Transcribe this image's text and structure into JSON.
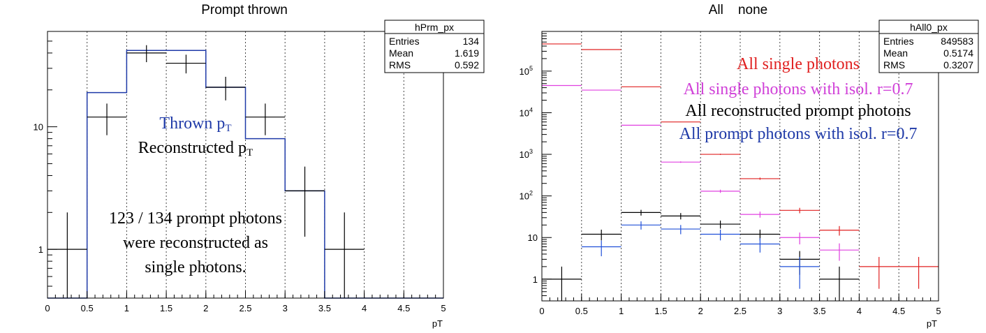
{
  "chart_data": [
    {
      "type": "line",
      "style": "histogram with error bars",
      "title": "Prompt thrown",
      "xlabel": "pT",
      "ylabel": "",
      "xlim": [
        0,
        5
      ],
      "ylim": [
        0.4,
        60
      ],
      "log_y": true,
      "grid": "vertical dashed",
      "x_ticks": [
        "0",
        "0.5",
        "1",
        "1.5",
        "2",
        "2.5",
        "3",
        "3.5",
        "4",
        "4.5",
        "5"
      ],
      "y_ticks": [
        {
          "value": 1,
          "label": "1"
        },
        {
          "value": 10,
          "label": "10"
        }
      ],
      "stats_box": {
        "title": "hPrm_px",
        "rows": [
          {
            "label": "Entries",
            "value": "134"
          },
          {
            "label": "Mean",
            "value": "1.619"
          },
          {
            "label": "RMS",
            "value": "0.592"
          }
        ]
      },
      "series": [
        {
          "name": "Thrown pT",
          "color": "#1f3aa8",
          "draw": "step",
          "bin_edges": [
            0,
            0.5,
            1,
            1.5,
            2,
            2.5,
            3,
            3.5,
            4,
            4.5,
            5
          ],
          "values": [
            0,
            19,
            42,
            42,
            21,
            8,
            3,
            0,
            0,
            0
          ]
        },
        {
          "name": "Reconstructed pT",
          "color": "#000000",
          "draw": "errorbars",
          "bin_edges": [
            0,
            0.5,
            1,
            1.5,
            2,
            2.5,
            3,
            3.5,
            4,
            4.5,
            5
          ],
          "values": [
            1,
            12,
            40,
            33,
            21,
            12,
            3,
            1,
            0,
            0
          ]
        }
      ],
      "annotations": [
        {
          "id": "thrown",
          "color": "#1f3aa8",
          "main": "Thrown p",
          "sub": "T"
        },
        {
          "id": "reco",
          "color": "#000000",
          "main": "Reconstructed p",
          "sub": "T"
        },
        {
          "id": "summary1",
          "color": "#000000",
          "text": "123 / 134 prompt photons"
        },
        {
          "id": "summary2",
          "color": "#000000",
          "text": "were reconstructed as"
        },
        {
          "id": "summary3",
          "color": "#000000",
          "text": "single photons."
        }
      ]
    },
    {
      "type": "line",
      "style": "histogram with error bars",
      "title": "All    none",
      "xlabel": "pT",
      "ylabel": "",
      "xlim": [
        0,
        5
      ],
      "ylim": [
        0.3,
        900000
      ],
      "log_y": true,
      "grid": "vertical dashed",
      "x_ticks": [
        "0",
        "0.5",
        "1",
        "1.5",
        "2",
        "2.5",
        "3",
        "3.5",
        "4",
        "4.5",
        "5"
      ],
      "y_ticks": [
        {
          "value": 1,
          "label": "1",
          "exp": ""
        },
        {
          "value": 10,
          "label": "10",
          "exp": ""
        },
        {
          "value": 100,
          "label": "10",
          "exp": "2"
        },
        {
          "value": 1000,
          "label": "10",
          "exp": "3"
        },
        {
          "value": 10000,
          "label": "10",
          "exp": "4"
        },
        {
          "value": 100000,
          "label": "10",
          "exp": "5"
        }
      ],
      "stats_box": {
        "title": "hAll0_px",
        "rows": [
          {
            "label": "Entries",
            "value": "849583"
          },
          {
            "label": "Mean",
            "value": "0.5174"
          },
          {
            "label": "RMS",
            "value": "0.3207"
          }
        ]
      },
      "series": [
        {
          "name": "All single photons",
          "color": "#e02020",
          "draw": "errorbars",
          "bin_edges": [
            0,
            0.5,
            1,
            1.5,
            2,
            2.5,
            3,
            3.5,
            4,
            4.5,
            5
          ],
          "values": [
            450000,
            330000,
            42000,
            6000,
            1000,
            260,
            45,
            15,
            2,
            2
          ]
        },
        {
          "name": "All single photons with isol. r=0.7",
          "color": "#e040e0",
          "draw": "errorbars",
          "bin_edges": [
            0,
            0.5,
            1,
            1.5,
            2,
            2.5,
            3,
            3.5,
            4,
            4.5,
            5
          ],
          "values": [
            45000,
            35000,
            5000,
            650,
            130,
            36,
            10,
            5,
            0,
            0
          ]
        },
        {
          "name": "All reconstructed prompt photons",
          "color": "#000000",
          "draw": "errorbars",
          "bin_edges": [
            0,
            0.5,
            1,
            1.5,
            2,
            2.5,
            3,
            3.5,
            4,
            4.5,
            5
          ],
          "values": [
            1,
            12,
            40,
            33,
            21,
            12,
            3,
            1,
            0,
            0
          ]
        },
        {
          "name": "All prompt photons with isol. r=0.7",
          "color": "#2050d8",
          "draw": "errorbars",
          "bin_edges": [
            0,
            0.5,
            1,
            1.5,
            2,
            2.5,
            3,
            3.5,
            4,
            4.5,
            5
          ],
          "values": [
            0,
            6,
            20,
            16,
            12,
            7,
            2,
            0,
            0,
            0
          ]
        }
      ],
      "annotations": [
        {
          "id": "l1",
          "color": "#e02020",
          "text": "All single photons"
        },
        {
          "id": "l2",
          "color": "#d040d8",
          "text": "All single photons with isol. r=0.7"
        },
        {
          "id": "l3",
          "color": "#000000",
          "text": "All reconstructed prompt photons"
        },
        {
          "id": "l4",
          "color": "#1f3aa8",
          "text": "All prompt photons with isol. r=0.7"
        }
      ]
    }
  ]
}
